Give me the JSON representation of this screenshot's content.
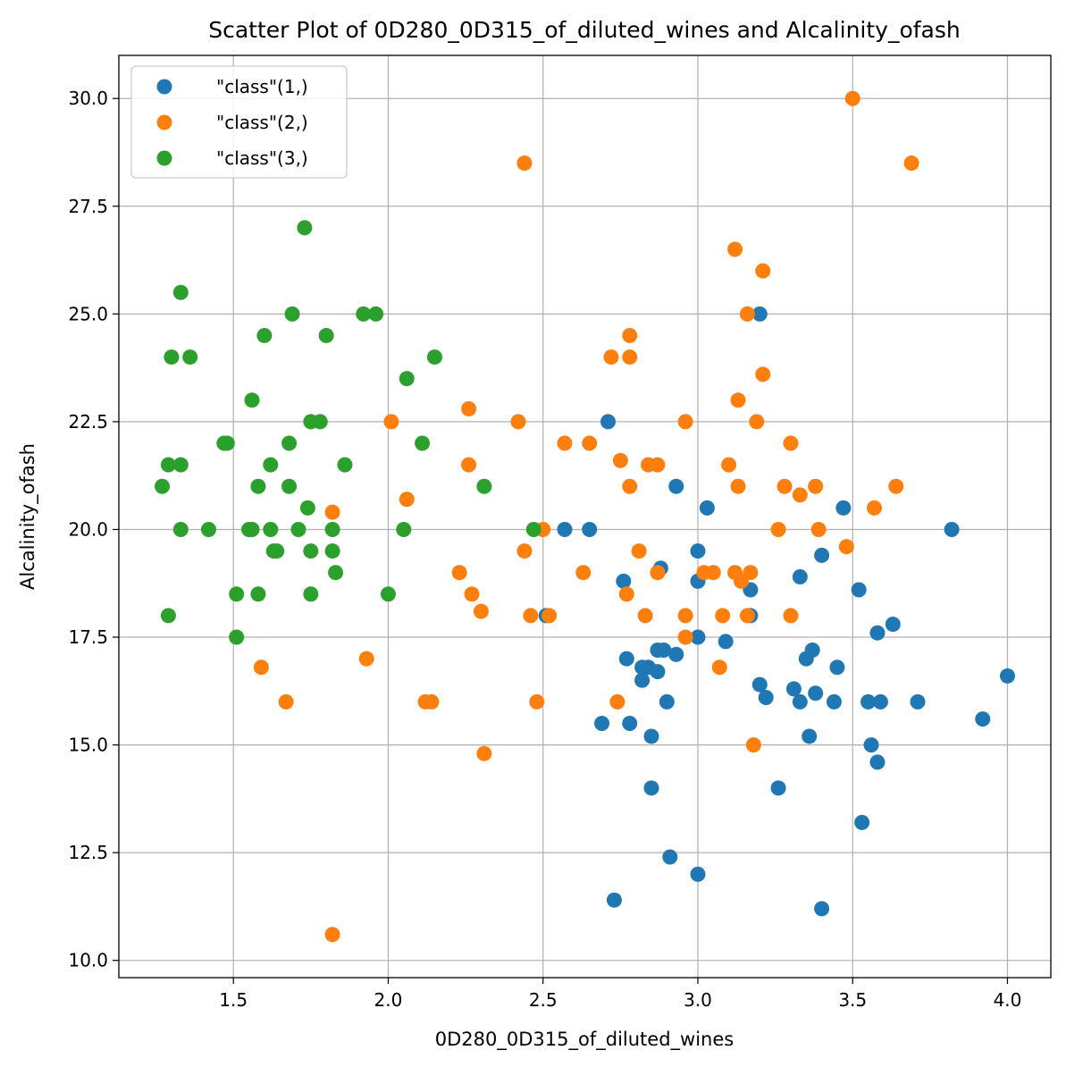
{
  "chart_data": {
    "type": "scatter",
    "title": "Scatter Plot of 0D280_0D315_of_diluted_wines and Alcalinity_ofash",
    "xlabel": "0D280_0D315_of_diluted_wines",
    "ylabel": "Alcalinity_ofash",
    "xlim": [
      1.13,
      4.14
    ],
    "ylim": [
      9.6,
      31.0
    ],
    "xticks": [
      "1.5",
      "2.0",
      "2.5",
      "3.0",
      "3.5",
      "4.0"
    ],
    "yticks": [
      "10.0",
      "12.5",
      "15.0",
      "17.5",
      "20.0",
      "22.5",
      "25.0",
      "27.5",
      "30.0"
    ],
    "grid": true,
    "legend_position": "top-left",
    "series": [
      {
        "name": "\"class\"(1,)",
        "color": "#1f77b4",
        "points": [
          [
            2.71,
            22.5
          ],
          [
            2.51,
            18.0
          ],
          [
            2.57,
            20.0
          ],
          [
            2.65,
            20.0
          ],
          [
            2.69,
            15.5
          ],
          [
            2.73,
            11.4
          ],
          [
            2.76,
            18.8
          ],
          [
            2.77,
            17.0
          ],
          [
            2.78,
            15.5
          ],
          [
            2.82,
            16.8
          ],
          [
            2.82,
            16.5
          ],
          [
            2.84,
            16.8
          ],
          [
            2.85,
            14.0
          ],
          [
            2.85,
            15.2
          ],
          [
            2.87,
            17.2
          ],
          [
            2.87,
            16.7
          ],
          [
            2.88,
            19.1
          ],
          [
            2.89,
            17.2
          ],
          [
            2.9,
            16.0
          ],
          [
            2.91,
            12.4
          ],
          [
            2.93,
            17.1
          ],
          [
            2.93,
            21.0
          ],
          [
            3.0,
            19.5
          ],
          [
            3.0,
            18.8
          ],
          [
            3.0,
            17.5
          ],
          [
            3.0,
            12.0
          ],
          [
            3.03,
            20.5
          ],
          [
            3.09,
            17.4
          ],
          [
            3.17,
            18.6
          ],
          [
            3.17,
            18.0
          ],
          [
            3.2,
            25.0
          ],
          [
            3.2,
            16.4
          ],
          [
            3.22,
            16.1
          ],
          [
            3.26,
            14.0
          ],
          [
            3.31,
            16.3
          ],
          [
            3.33,
            16.0
          ],
          [
            3.33,
            18.9
          ],
          [
            3.35,
            17.0
          ],
          [
            3.36,
            15.2
          ],
          [
            3.37,
            17.2
          ],
          [
            3.38,
            16.2
          ],
          [
            3.4,
            19.4
          ],
          [
            3.4,
            11.2
          ],
          [
            3.44,
            16.0
          ],
          [
            3.45,
            16.8
          ],
          [
            3.47,
            20.5
          ],
          [
            3.52,
            18.6
          ],
          [
            3.53,
            13.2
          ],
          [
            3.55,
            16.0
          ],
          [
            3.56,
            15.0
          ],
          [
            3.58,
            14.6
          ],
          [
            3.58,
            17.6
          ],
          [
            3.59,
            16.0
          ],
          [
            3.63,
            17.8
          ],
          [
            3.71,
            16.0
          ],
          [
            3.82,
            20.0
          ],
          [
            3.92,
            15.6
          ],
          [
            4.0,
            16.6
          ]
        ]
      },
      {
        "name": "\"class\"(2,)",
        "color": "#ff7f0e",
        "points": [
          [
            1.59,
            16.8
          ],
          [
            1.67,
            16.0
          ],
          [
            1.82,
            20.4
          ],
          [
            1.82,
            10.6
          ],
          [
            1.93,
            17.0
          ],
          [
            2.01,
            22.5
          ],
          [
            2.06,
            20.7
          ],
          [
            2.12,
            16.0
          ],
          [
            2.14,
            16.0
          ],
          [
            2.23,
            19.0
          ],
          [
            2.26,
            22.8
          ],
          [
            2.26,
            21.5
          ],
          [
            2.27,
            18.5
          ],
          [
            2.3,
            18.1
          ],
          [
            2.31,
            14.8
          ],
          [
            2.42,
            22.5
          ],
          [
            2.44,
            28.5
          ],
          [
            2.44,
            19.5
          ],
          [
            2.46,
            18.0
          ],
          [
            2.48,
            16.0
          ],
          [
            2.5,
            20.0
          ],
          [
            2.52,
            18.0
          ],
          [
            2.57,
            22.0
          ],
          [
            2.63,
            19.0
          ],
          [
            2.65,
            22.0
          ],
          [
            2.72,
            24.0
          ],
          [
            2.74,
            16.0
          ],
          [
            2.75,
            21.6
          ],
          [
            2.77,
            18.5
          ],
          [
            2.78,
            24.5
          ],
          [
            2.78,
            24.0
          ],
          [
            2.78,
            21.0
          ],
          [
            2.81,
            19.5
          ],
          [
            2.83,
            18.0
          ],
          [
            2.84,
            21.5
          ],
          [
            2.87,
            21.5
          ],
          [
            2.87,
            19.0
          ],
          [
            2.96,
            22.5
          ],
          [
            2.96,
            18.0
          ],
          [
            2.96,
            17.5
          ],
          [
            3.02,
            19.0
          ],
          [
            3.05,
            19.0
          ],
          [
            3.07,
            16.8
          ],
          [
            3.08,
            18.0
          ],
          [
            3.1,
            21.5
          ],
          [
            3.12,
            19.0
          ],
          [
            3.12,
            26.5
          ],
          [
            3.13,
            23.0
          ],
          [
            3.13,
            21.0
          ],
          [
            3.14,
            18.8
          ],
          [
            3.16,
            25.0
          ],
          [
            3.16,
            18.0
          ],
          [
            3.17,
            19.0
          ],
          [
            3.18,
            15.0
          ],
          [
            3.19,
            22.5
          ],
          [
            3.21,
            26.0
          ],
          [
            3.21,
            23.6
          ],
          [
            3.26,
            20.0
          ],
          [
            3.28,
            21.0
          ],
          [
            3.3,
            22.0
          ],
          [
            3.3,
            18.0
          ],
          [
            3.33,
            20.8
          ],
          [
            3.38,
            21.0
          ],
          [
            3.39,
            20.0
          ],
          [
            3.48,
            19.6
          ],
          [
            3.5,
            30.0
          ],
          [
            3.57,
            20.5
          ],
          [
            3.64,
            21.0
          ],
          [
            3.69,
            28.5
          ]
        ]
      },
      {
        "name": "\"class\"(3,)",
        "color": "#2ca02c",
        "points": [
          [
            1.27,
            21.0
          ],
          [
            1.29,
            21.5
          ],
          [
            1.29,
            18.0
          ],
          [
            1.3,
            24.0
          ],
          [
            1.33,
            25.5
          ],
          [
            1.33,
            21.5
          ],
          [
            1.33,
            20.0
          ],
          [
            1.36,
            24.0
          ],
          [
            1.42,
            20.0
          ],
          [
            1.47,
            22.0
          ],
          [
            1.48,
            22.0
          ],
          [
            1.51,
            18.5
          ],
          [
            1.51,
            17.5
          ],
          [
            1.55,
            20.0
          ],
          [
            1.56,
            23.0
          ],
          [
            1.56,
            20.0
          ],
          [
            1.58,
            21.0
          ],
          [
            1.58,
            18.5
          ],
          [
            1.6,
            24.5
          ],
          [
            1.62,
            21.5
          ],
          [
            1.62,
            20.0
          ],
          [
            1.63,
            19.5
          ],
          [
            1.64,
            19.5
          ],
          [
            1.68,
            22.0
          ],
          [
            1.68,
            21.0
          ],
          [
            1.69,
            25.0
          ],
          [
            1.71,
            20.0
          ],
          [
            1.73,
            27.0
          ],
          [
            1.74,
            20.5
          ],
          [
            1.75,
            22.5
          ],
          [
            1.75,
            19.5
          ],
          [
            1.75,
            18.5
          ],
          [
            1.78,
            22.5
          ],
          [
            1.8,
            24.5
          ],
          [
            1.82,
            20.0
          ],
          [
            1.82,
            19.5
          ],
          [
            1.83,
            19.0
          ],
          [
            1.86,
            21.5
          ],
          [
            1.92,
            25.0
          ],
          [
            1.96,
            25.0
          ],
          [
            2.0,
            18.5
          ],
          [
            2.05,
            20.0
          ],
          [
            2.06,
            23.5
          ],
          [
            2.11,
            22.0
          ],
          [
            2.15,
            24.0
          ],
          [
            2.31,
            21.0
          ],
          [
            2.47,
            20.0
          ]
        ]
      }
    ]
  }
}
